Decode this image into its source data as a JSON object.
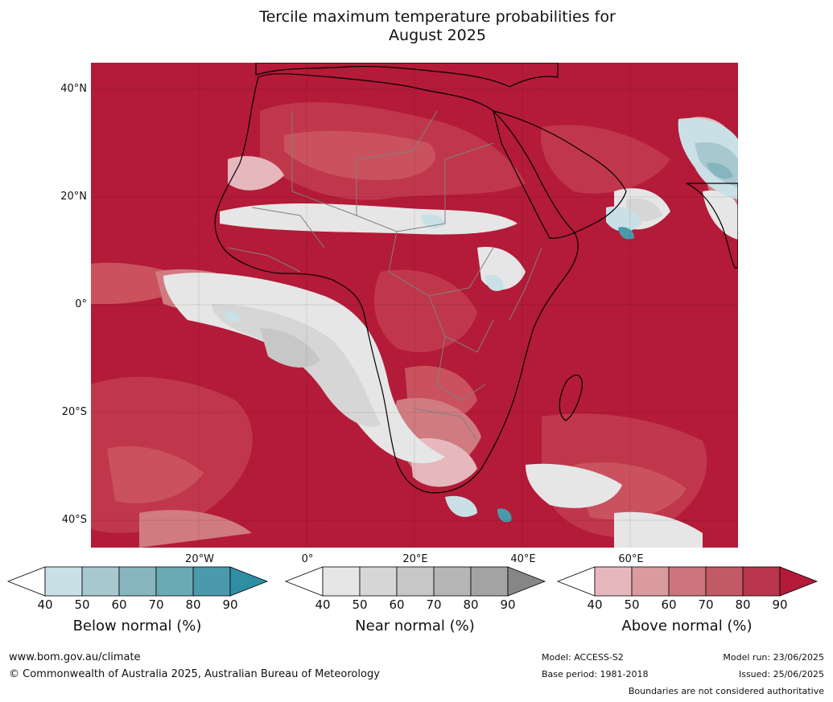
{
  "title": {
    "line1": "Tercile maximum temperature probabilities for",
    "line2": "August 2025"
  },
  "map": {
    "region": "Africa",
    "lat_labels": [
      "40°N",
      "20°N",
      "0°",
      "20°S",
      "40°S"
    ],
    "lon_labels": [
      "20°W",
      "0°",
      "20°E",
      "40°E",
      "60°E"
    ],
    "colors": {
      "above_90": "#b31b38",
      "above_80": "#c0374b",
      "above_70": "#c9525e",
      "above_60": "#d07b80",
      "above_50": "#d99aa0",
      "above_40": "#e6b8bd",
      "near_40": "#e6e6e6",
      "near_50": "#d6d6d6",
      "near_60": "#c7c7c7",
      "below_40": "#c9e0e6",
      "below_50": "#a8c8d0",
      "below_60": "#87b5bf",
      "below_70": "#4a9aab",
      "ocean_border": "#000000",
      "country_border": "#808080"
    }
  },
  "colorbars": [
    {
      "label": "Below normal (%)",
      "ticks": [
        "40",
        "50",
        "60",
        "70",
        "80",
        "90"
      ],
      "colors": [
        "#ffffff",
        "#c9e0e6",
        "#a8c8d0",
        "#87b5bf",
        "#6aaab5",
        "#4a9aab",
        "#2f8ea3"
      ]
    },
    {
      "label": "Near normal (%)",
      "ticks": [
        "40",
        "50",
        "60",
        "70",
        "80",
        "90"
      ],
      "colors": [
        "#ffffff",
        "#e6e6e6",
        "#d6d6d6",
        "#c7c7c7",
        "#b5b5b5",
        "#a3a3a3",
        "#868686"
      ]
    },
    {
      "label": "Above normal (%)",
      "ticks": [
        "40",
        "50",
        "60",
        "70",
        "80",
        "90"
      ],
      "colors": [
        "#ffffff",
        "#e6b8bd",
        "#d99aa0",
        "#cd757d",
        "#c25a66",
        "#b8354b",
        "#b31b38"
      ]
    }
  ],
  "footer": {
    "website": "www.bom.gov.au/climate",
    "copyright": "© Commonwealth of Australia 2025, Australian Bureau of Meteorology",
    "model": "Model: ACCESS-S2",
    "base_period": "Base period: 1981-2018",
    "model_run": "Model run: 23/06/2025",
    "issued": "Issued: 25/06/2025",
    "disclaimer": "Boundaries are not considered authoritative"
  }
}
